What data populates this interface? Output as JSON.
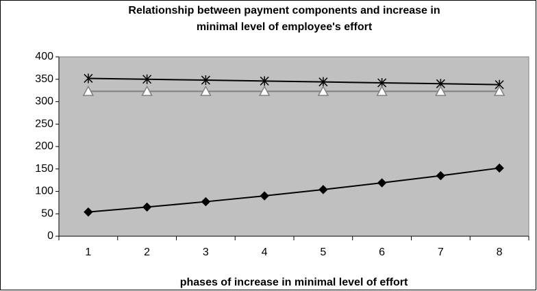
{
  "chart_data": {
    "type": "line",
    "title": [
      "Relationship between payment components and increase in",
      "minimal level of employee's effort"
    ],
    "x_label": "phases of increase in minimal level of effort",
    "categories": [
      "1",
      "2",
      "3",
      "4",
      "5",
      "6",
      "7",
      "8"
    ],
    "series": [
      {
        "color": "#000000",
        "marker": "star",
        "values": [
          352,
          350,
          348,
          346,
          344,
          342,
          340,
          338
        ]
      },
      {
        "color": "#808080",
        "marker": "triangle",
        "values": [
          323,
          323,
          323,
          323,
          323,
          323,
          323,
          323
        ]
      },
      {
        "color": "#000000",
        "marker": "diamond",
        "values": [
          54,
          65,
          77,
          90,
          104,
          119,
          135,
          152
        ]
      }
    ],
    "ylim": [
      0,
      400
    ],
    "yticks": [
      0,
      50,
      100,
      150,
      200,
      250,
      300,
      350,
      400
    ],
    "plot_background": "#c0c0c0"
  }
}
